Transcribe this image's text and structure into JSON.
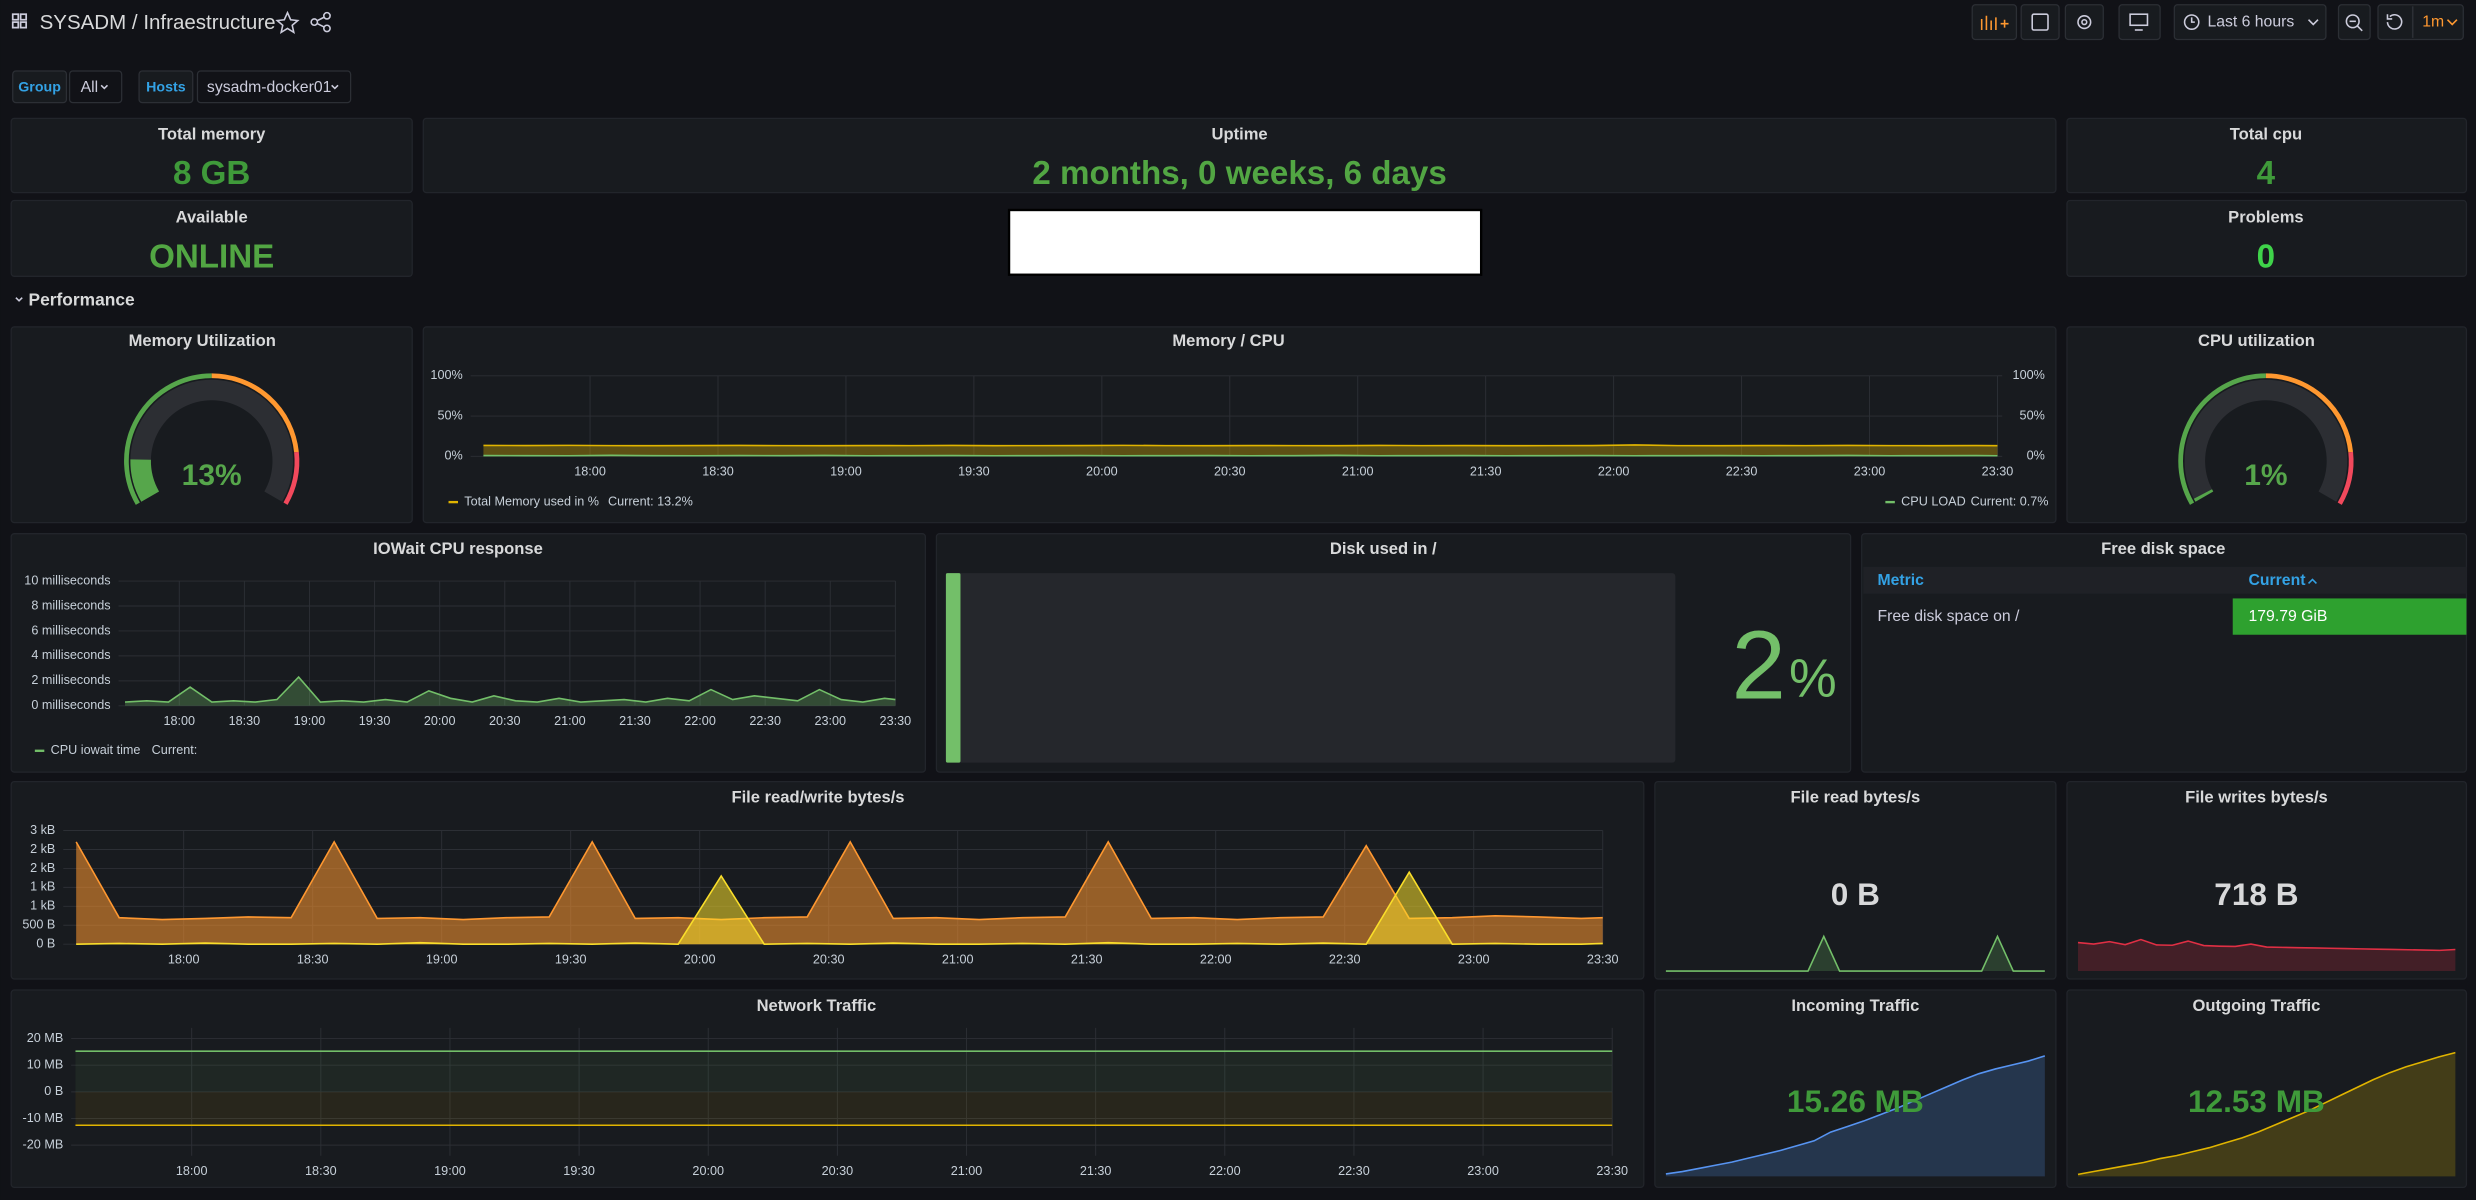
{
  "header": {
    "title": "SYSADM / Infraestructure",
    "time_range": "Last 6 hours",
    "refresh": "1m"
  },
  "variables": [
    {
      "label": "Group",
      "value": "All"
    },
    {
      "label": "Hosts",
      "value": "sysadm-docker01"
    }
  ],
  "stats": {
    "total_memory": {
      "title": "Total memory",
      "value": "8 GB"
    },
    "uptime": {
      "title": "Uptime",
      "value": "2 months, 0 weeks, 6 days"
    },
    "total_cpu": {
      "title": "Total cpu",
      "value": 4
    },
    "available": {
      "title": "Available",
      "value": "ONLINE"
    },
    "problems": {
      "title": "Problems",
      "value": 0
    }
  },
  "row_title": "Performance",
  "gauges": {
    "memory": {
      "title": "Memory Utilization",
      "value": 13,
      "value_label": "13%",
      "range": [
        0,
        100
      ],
      "thresholds": [
        {
          "value": 0,
          "color": "#56a64b"
        },
        {
          "value": 50,
          "color": "#ff9830"
        },
        {
          "value": 85,
          "color": "#f2495c"
        }
      ]
    },
    "cpu": {
      "title": "CPU utilization",
      "value": 1,
      "value_label": "1%",
      "range": [
        0,
        100
      ],
      "thresholds": [
        {
          "value": 0,
          "color": "#56a64b"
        },
        {
          "value": 50,
          "color": "#ff9830"
        },
        {
          "value": 85,
          "color": "#f2495c"
        }
      ]
    }
  },
  "time": {
    "x": [
      "17:35",
      "17:45",
      "17:55",
      "18:05",
      "18:15",
      "18:25",
      "18:35",
      "18:45",
      "18:55",
      "19:05",
      "19:15",
      "19:25",
      "19:35",
      "19:45",
      "19:55",
      "20:05",
      "20:15",
      "20:25",
      "20:35",
      "20:45",
      "20:55",
      "21:05",
      "21:15",
      "21:25",
      "21:35",
      "21:45",
      "21:55",
      "22:05",
      "22:15",
      "22:25",
      "22:35",
      "22:45",
      "22:55",
      "23:05",
      "23:15",
      "23:25",
      "23:30"
    ],
    "xlim": [
      "17:32",
      "23:30"
    ],
    "xticks": [
      "18:00",
      "18:30",
      "19:00",
      "19:30",
      "20:00",
      "20:30",
      "21:00",
      "21:30",
      "22:00",
      "22:30",
      "23:00",
      "23:30"
    ]
  },
  "memory_cpu": {
    "title": "Memory / CPU",
    "ylim": [
      0,
      100
    ],
    "yticks": [
      {
        "value": 0,
        "label": "0%"
      },
      {
        "value": 50,
        "label": "50%"
      },
      {
        "value": 100,
        "label": "100%"
      }
    ],
    "y2lim": [
      0,
      100
    ],
    "y2ticks": [
      {
        "value": 0,
        "label": "0%"
      },
      {
        "value": 50,
        "label": "50%"
      },
      {
        "value": 100,
        "label": "100%"
      }
    ],
    "series": [
      {
        "name": "Total Memory used in %",
        "color": "#e0b400",
        "current": 13.2,
        "current_label": "Current: 13.2%",
        "values": [
          13.5,
          13.4,
          13.6,
          13.3,
          13.2,
          13.4,
          13.5,
          13.3,
          13.2,
          13.4,
          13.3,
          13.5,
          13.2,
          13.3,
          13.4,
          13.6,
          13.3,
          13.2,
          13.4,
          13.3,
          13.2,
          13.5,
          13.3,
          13.4,
          13.2,
          13.3,
          13.4,
          14.1,
          13.3,
          13.2,
          13.4,
          13.3,
          13.5,
          13.3,
          13.2,
          13.4,
          13.2
        ]
      },
      {
        "name": "CPU LOAD",
        "color": "#73bf69",
        "axis": "y2",
        "current": 0.7,
        "current_label": "Current: 0.7%",
        "values": [
          0.9,
          0.8,
          0.7,
          1.2,
          0.8,
          0.7,
          0.9,
          0.8,
          1.1,
          0.7,
          0.8,
          0.9,
          0.7,
          0.8,
          1.0,
          0.7,
          0.8,
          0.9,
          0.7,
          0.8,
          1.2,
          0.7,
          0.8,
          0.9,
          0.7,
          0.8,
          1.0,
          0.7,
          0.8,
          0.9,
          0.7,
          0.8,
          1.1,
          0.7,
          0.8,
          0.9,
          0.7
        ]
      }
    ]
  },
  "iowait": {
    "title": "IOWait CPU response",
    "ylim": [
      0,
      10
    ],
    "yticks": [
      {
        "value": 0,
        "label": "0 milliseconds"
      },
      {
        "value": 2,
        "label": "2 milliseconds"
      },
      {
        "value": 4,
        "label": "4 milliseconds"
      },
      {
        "value": 6,
        "label": "6 milliseconds"
      },
      {
        "value": 8,
        "label": "8 milliseconds"
      },
      {
        "value": 10,
        "label": "10 milliseconds"
      }
    ],
    "series": [
      {
        "name": "CPU iowait time",
        "color": "#73bf69",
        "current_label": "Current:",
        "values": [
          0.3,
          0.4,
          0.3,
          1.5,
          0.3,
          0.4,
          0.3,
          0.5,
          2.3,
          0.3,
          0.4,
          0.3,
          0.5,
          0.3,
          1.2,
          0.6,
          0.3,
          0.8,
          0.4,
          0.3,
          0.6,
          0.3,
          0.4,
          0.5,
          0.3,
          0.6,
          0.4,
          1.3,
          0.5,
          0.8,
          0.6,
          0.4,
          1.3,
          0.5,
          0.3,
          0.6,
          0.5
        ]
      }
    ]
  },
  "disk_used": {
    "title": "Disk used in /",
    "value": 2,
    "unit": "%",
    "range": [
      0,
      100
    ],
    "color": "#73bf69"
  },
  "free_disk": {
    "title": "Free disk space",
    "columns": [
      "Metric",
      "Current"
    ],
    "rows": [
      [
        "Free disk space on /",
        "179.79 GiB"
      ]
    ]
  },
  "file_rw": {
    "title": "File read/write bytes/s",
    "ylim": [
      0,
      3000
    ],
    "yticks": [
      {
        "value": 0,
        "label": "0 B"
      },
      {
        "value": 500,
        "label": "500 B"
      },
      {
        "value": 1000,
        "label": "1 kB"
      },
      {
        "value": 1500,
        "label": "1 kB"
      },
      {
        "value": 2000,
        "label": "2 kB"
      },
      {
        "value": 2500,
        "label": "2 kB"
      },
      {
        "value": 3000,
        "label": "3 kB"
      }
    ],
    "series": [
      {
        "color": "#ff9830",
        "values": [
          2700,
          700,
          650,
          680,
          720,
          700,
          2700,
          680,
          700,
          650,
          700,
          720,
          2700,
          680,
          700,
          650,
          700,
          720,
          2700,
          680,
          700,
          650,
          700,
          720,
          2700,
          680,
          700,
          650,
          700,
          720,
          2600,
          680,
          700,
          750,
          720,
          680,
          700
        ]
      },
      {
        "color": "#fade2a",
        "values": [
          0,
          20,
          0,
          30,
          0,
          0,
          20,
          0,
          40,
          0,
          0,
          20,
          0,
          30,
          0,
          1800,
          0,
          20,
          0,
          30,
          0,
          0,
          20,
          0,
          40,
          0,
          0,
          20,
          0,
          30,
          0,
          1900,
          0,
          20,
          0,
          0,
          20
        ]
      }
    ]
  },
  "file_read": {
    "title": "File read bytes/s",
    "value_label": "0 B",
    "color": "#73bf69",
    "ylim": [
      0,
      52
    ],
    "values": [
      0,
      0,
      0,
      0,
      0,
      0,
      0,
      0,
      0,
      0,
      12,
      0,
      0,
      0,
      0,
      0,
      0,
      0,
      0,
      0,
      0,
      12,
      0,
      0,
      0
    ]
  },
  "file_writes": {
    "title": "File writes bytes/s",
    "value_label": "718 B",
    "color": "#e02f44",
    "ylim": [
      0,
      5000
    ],
    "values": [
      950,
      900,
      980,
      880,
      1050,
      870,
      860,
      1000,
      850,
      830,
      820,
      900,
      800,
      790,
      780,
      770,
      760,
      750,
      740,
      730,
      720,
      710,
      700,
      690,
      718
    ]
  },
  "network": {
    "title": "Network Traffic",
    "x": [
      "17:33",
      "23:30"
    ],
    "ylim": [
      -24,
      24
    ],
    "yticks": [
      {
        "value": -20,
        "label": "-20 MB"
      },
      {
        "value": -10,
        "label": "-10 MB"
      },
      {
        "value": 0,
        "label": "0 B"
      },
      {
        "value": 10,
        "label": "10 MB"
      },
      {
        "value": 20,
        "label": "20 MB"
      }
    ],
    "series": [
      {
        "color": "#73bf69",
        "values": [
          15.26,
          15.26
        ]
      },
      {
        "color": "#e0b400",
        "values": [
          -12.53,
          -12.53
        ]
      }
    ]
  },
  "incoming": {
    "title": "Incoming Traffic",
    "value_label": "15.26 MB",
    "color": "#5794f2",
    "ylim": [
      0,
      20
    ],
    "values": [
      0.3,
      0.6,
      1.0,
      1.4,
      1.8,
      2.3,
      2.8,
      3.3,
      3.9,
      4.5,
      5.6,
      6.3,
      7.0,
      7.8,
      8.6,
      9.5,
      10.4,
      11.3,
      12.2,
      13.0,
      13.6,
      14.1,
      14.6,
      15.26
    ]
  },
  "outgoing": {
    "title": "Outgoing Traffic",
    "value_label": "12.53 MB",
    "color": "#e0b400",
    "ylim": [
      0,
      16
    ],
    "values": [
      0.2,
      0.5,
      0.8,
      1.1,
      1.4,
      1.8,
      2.1,
      2.5,
      2.9,
      3.4,
      3.9,
      4.5,
      5.2,
      5.9,
      6.6,
      7.4,
      8.2,
      9.0,
      9.8,
      10.5,
      11.1,
      11.6,
      12.1,
      12.53
    ]
  }
}
